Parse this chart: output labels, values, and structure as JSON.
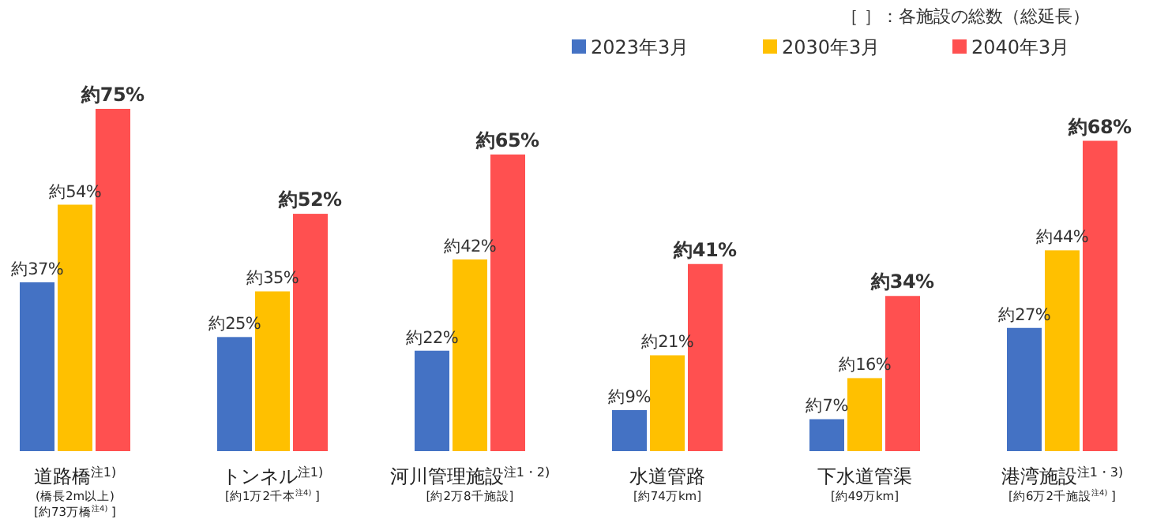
{
  "chart_data": {
    "type": "bar",
    "categories": [
      "道路橋$^{注1)}$\n(橋長2m以上)\n[約73万橋$^{注4)}$ ]",
      "トンネル$^{注1)}$\n[約1万2千本$^{注4)}$ ]",
      "河川管理施設$^{注1・2)}$\n[約2万8千施設]",
      "水道管路\n[約74万km]",
      "下水道管渠\n[約49万km]",
      "港湾施設$^{注1・3)}$\n[約6万2千施設$^{注4)}$ ]"
    ],
    "series": [
      {
        "name": "2023年3月",
        "color": "#4472c4",
        "values": [
          37,
          25,
          22,
          9,
          7,
          27
        ],
        "value_labels": [
          "約37%",
          "約25%",
          "約22%",
          "約9%",
          "約7%",
          "約27%"
        ]
      },
      {
        "name": "2030年3月",
        "color": "#ffc000",
        "values": [
          54,
          35,
          42,
          21,
          16,
          44
        ],
        "value_labels": [
          "約54%",
          "約35%",
          "約42%",
          "約21%",
          "約16%",
          "約44%"
        ]
      },
      {
        "name": "2040年3月",
        "color": "#ff5050",
        "values": [
          75,
          52,
          65,
          41,
          34,
          68
        ],
        "value_labels": [
          "約75%",
          "約52%",
          "約65%",
          "約41%",
          "約34%",
          "約68%"
        ]
      }
    ],
    "annotations": [
      "［ ］：各施設の総数（総延長）"
    ],
    "legend": "top right"
  }
}
